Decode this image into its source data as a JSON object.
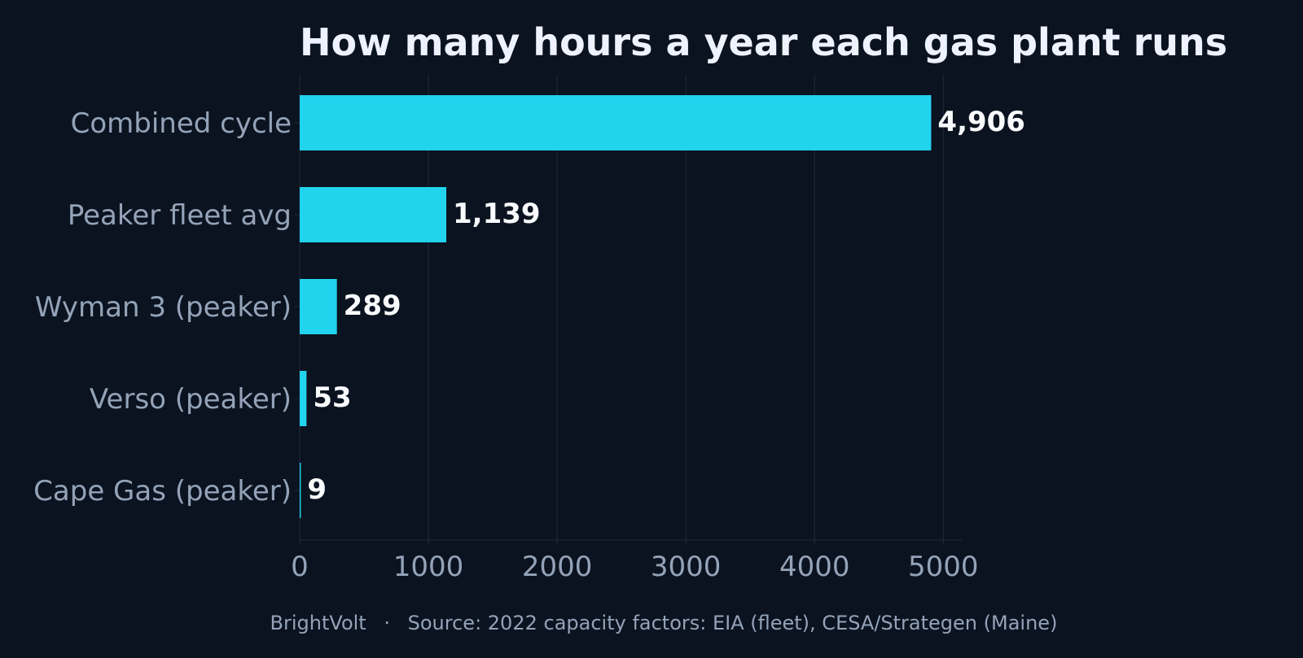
{
  "chart_data": {
    "type": "bar",
    "orientation": "horizontal",
    "title": "How many hours a year each gas plant runs",
    "categories": [
      "Combined cycle",
      "Peaker fleet avg",
      "Wyman 3 (peaker)",
      "Verso (peaker)",
      "Cape Gas (peaker)"
    ],
    "values": [
      4906,
      1139,
      289,
      53,
      9
    ],
    "value_labels": [
      "4,906",
      "1,139",
      "289",
      "53",
      "9"
    ],
    "xlim": [
      0,
      5150
    ],
    "xticks": [
      0,
      1000,
      2000,
      3000,
      4000,
      5000
    ],
    "xtick_labels": [
      "0",
      "1000",
      "2000",
      "3000",
      "4000",
      "5000"
    ],
    "xlabel": "",
    "ylabel": "",
    "grid": "vertical"
  },
  "footer": {
    "brand": "BrightVolt",
    "separator": "·",
    "source": "Source: 2022 capacity factors: EIA (fleet), CESA/Strategen (Maine)"
  },
  "colors": {
    "background": "#0b1320",
    "bar": "#22d3ee",
    "title": "#eef2ff",
    "value_text": "#f8fafc",
    "axis_text": "#94a3b8",
    "grid": "#1e2a3d",
    "axis_line": "#1f2b3d"
  }
}
